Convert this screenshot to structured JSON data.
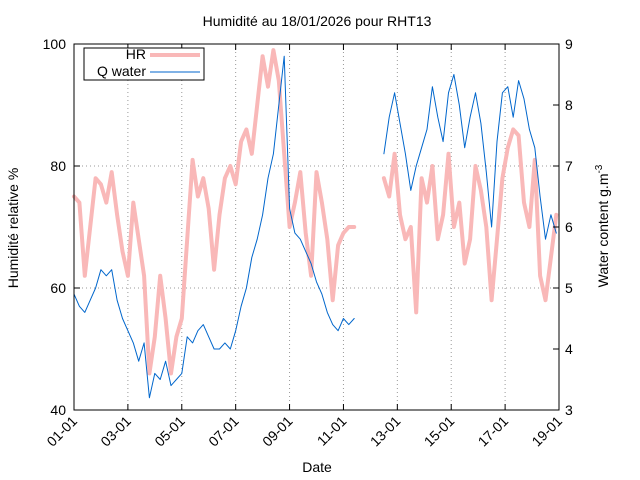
{
  "chart_data": {
    "type": "line",
    "title": "Humidité au 18/01/2026 pour RHT13",
    "xlabel": "Date",
    "ylabel": "Humidité relative %",
    "y2label_main": "Water content g.m",
    "y2label_sup": "-3",
    "x_ticks": [
      "01-01",
      "03-01",
      "05-01",
      "07-01",
      "09-01",
      "11-01",
      "13-01",
      "15-01",
      "17-01",
      "19-01"
    ],
    "xlim": [
      1,
      19
    ],
    "ylim": [
      40,
      100
    ],
    "y2lim": [
      3,
      9
    ],
    "y_ticks": [
      "40",
      "60",
      "80",
      "100"
    ],
    "y2_ticks": [
      "3",
      "4",
      "5",
      "6",
      "7",
      "8",
      "9"
    ],
    "grid": true,
    "legend_position": "top-left",
    "series": [
      {
        "name": "HR",
        "axis": "left",
        "color": "#f9b8b8",
        "x": [
          1.0,
          1.2,
          1.4,
          1.6,
          1.8,
          2.0,
          2.2,
          2.4,
          2.6,
          2.8,
          3.0,
          3.2,
          3.4,
          3.6,
          3.8,
          4.0,
          4.2,
          4.4,
          4.6,
          4.8,
          5.0,
          5.2,
          5.4,
          5.6,
          5.8,
          6.0,
          6.2,
          6.4,
          6.6,
          6.8,
          7.0,
          7.2,
          7.4,
          7.6,
          7.8,
          8.0,
          8.2,
          8.4,
          8.6,
          8.8,
          9.0,
          9.2,
          9.4,
          9.6,
          9.8,
          10.0,
          10.2,
          10.4,
          10.6,
          10.8,
          11.0,
          11.2,
          11.4
        ],
        "y": [
          75,
          74,
          62,
          70,
          78,
          77,
          74,
          79,
          72,
          66,
          62,
          74,
          68,
          62,
          46,
          52,
          62,
          55,
          46,
          52,
          55,
          68,
          81,
          75,
          78,
          73,
          63,
          72,
          78,
          80,
          77,
          84,
          86,
          82,
          90,
          98,
          93,
          99,
          94,
          82,
          70,
          74,
          79,
          69,
          62,
          79,
          74,
          68,
          58,
          67,
          69,
          70,
          70
        ]
      },
      {
        "name": "HR",
        "axis": "left",
        "color": "#f9b8b8",
        "x": [
          12.5,
          12.7,
          12.9,
          13.1,
          13.3,
          13.5,
          13.7,
          13.9,
          14.1,
          14.3,
          14.5,
          14.7,
          14.9,
          15.1,
          15.3,
          15.5,
          15.7,
          15.9,
          16.1,
          16.3,
          16.5,
          16.7,
          16.9,
          17.1,
          17.3,
          17.5,
          17.7,
          17.9,
          18.1,
          18.3,
          18.5,
          18.7,
          18.9
        ],
        "y": [
          78,
          75,
          82,
          72,
          68,
          70,
          56,
          78,
          74,
          80,
          68,
          72,
          82,
          70,
          74,
          64,
          68,
          80,
          76,
          70,
          58,
          68,
          78,
          83,
          86,
          85,
          74,
          70,
          81,
          62,
          58,
          65,
          72
        ]
      },
      {
        "name": "Q water",
        "axis": "right",
        "color": "#0066cc",
        "x": [
          1.0,
          1.2,
          1.4,
          1.6,
          1.8,
          2.0,
          2.2,
          2.4,
          2.6,
          2.8,
          3.0,
          3.2,
          3.4,
          3.6,
          3.8,
          4.0,
          4.2,
          4.4,
          4.6,
          4.8,
          5.0,
          5.2,
          5.4,
          5.6,
          5.8,
          6.0,
          6.2,
          6.4,
          6.6,
          6.8,
          7.0,
          7.2,
          7.4,
          7.6,
          7.8,
          8.0,
          8.2,
          8.4,
          8.6,
          8.8,
          9.0,
          9.2,
          9.4,
          9.6,
          9.8,
          10.0,
          10.2,
          10.4,
          10.6,
          10.8,
          11.0,
          11.2,
          11.4
        ],
        "y": [
          4.9,
          4.7,
          4.6,
          4.8,
          5.0,
          5.3,
          5.2,
          5.3,
          4.8,
          4.5,
          4.3,
          4.1,
          3.8,
          4.1,
          3.2,
          3.6,
          3.5,
          3.8,
          3.4,
          3.5,
          3.6,
          4.2,
          4.1,
          4.3,
          4.4,
          4.2,
          4.0,
          4.0,
          4.1,
          4.0,
          4.3,
          4.7,
          5.0,
          5.5,
          5.8,
          6.2,
          6.8,
          7.2,
          8.0,
          8.8,
          6.3,
          5.9,
          5.8,
          5.6,
          5.4,
          5.1,
          4.9,
          4.6,
          4.4,
          4.3,
          4.5,
          4.4,
          4.5
        ]
      },
      {
        "name": "Q water",
        "axis": "right",
        "color": "#0066cc",
        "x": [
          12.5,
          12.7,
          12.9,
          13.1,
          13.3,
          13.5,
          13.7,
          13.9,
          14.1,
          14.3,
          14.5,
          14.7,
          14.9,
          15.1,
          15.3,
          15.5,
          15.7,
          15.9,
          16.1,
          16.3,
          16.5,
          16.7,
          16.9,
          17.1,
          17.3,
          17.5,
          17.7,
          17.9,
          18.1,
          18.3,
          18.5,
          18.7,
          18.9
        ],
        "y": [
          7.2,
          7.8,
          8.2,
          7.7,
          7.2,
          6.6,
          7.0,
          7.3,
          7.6,
          8.3,
          7.8,
          7.4,
          8.2,
          8.5,
          8.0,
          7.3,
          7.8,
          8.2,
          7.7,
          6.9,
          6.0,
          7.4,
          8.2,
          8.3,
          7.8,
          8.4,
          8.1,
          7.6,
          7.3,
          6.5,
          5.8,
          6.2,
          5.9
        ]
      }
    ]
  }
}
